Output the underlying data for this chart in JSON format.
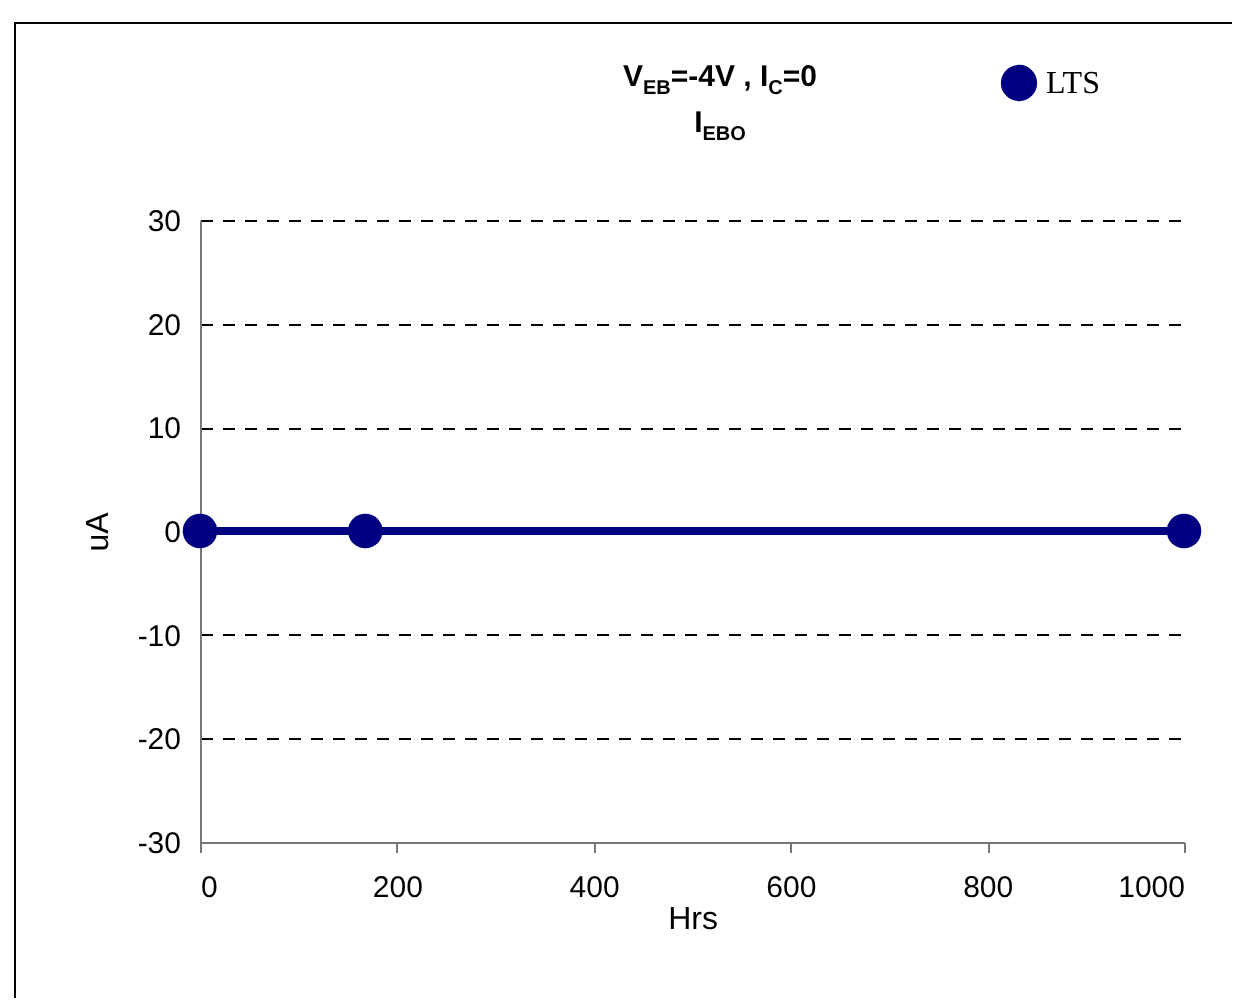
{
  "chart_data": {
    "type": "line",
    "title": "V$_{EB}$=-4V , I$_{C}$=0",
    "subtitle": "I$_{EBO}$",
    "xlabel": "Hrs",
    "ylabel": "uA",
    "x": [
      0,
      168,
      1000
    ],
    "series": [
      {
        "name": "LTS",
        "color": "#000080",
        "values": [
          0,
          0,
          0
        ]
      }
    ],
    "xlim": [
      0,
      1000
    ],
    "xticks": [
      0,
      200,
      400,
      600,
      800,
      1000
    ],
    "ylim": [
      -30,
      30
    ],
    "yticks": [
      -30,
      -20,
      -10,
      0,
      10,
      20,
      30
    ],
    "grid": "y",
    "legend": "top right",
    "marker": "circle",
    "line_style": "solid"
  }
}
